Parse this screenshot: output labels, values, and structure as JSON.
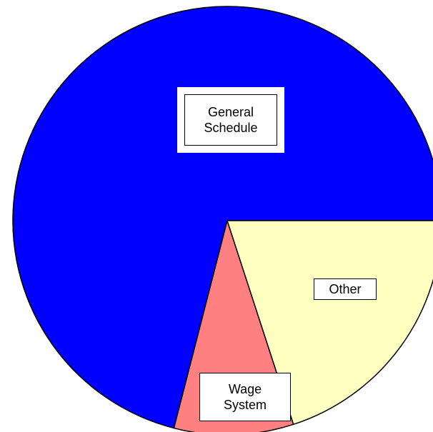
{
  "chart_data": {
    "type": "pie",
    "categories": [
      "General Schedule",
      "Wage System",
      "Other"
    ],
    "values": [
      71,
      9,
      20
    ],
    "colors": [
      "#0000ff",
      "#ff8080",
      "#ffffc0"
    ]
  }
}
